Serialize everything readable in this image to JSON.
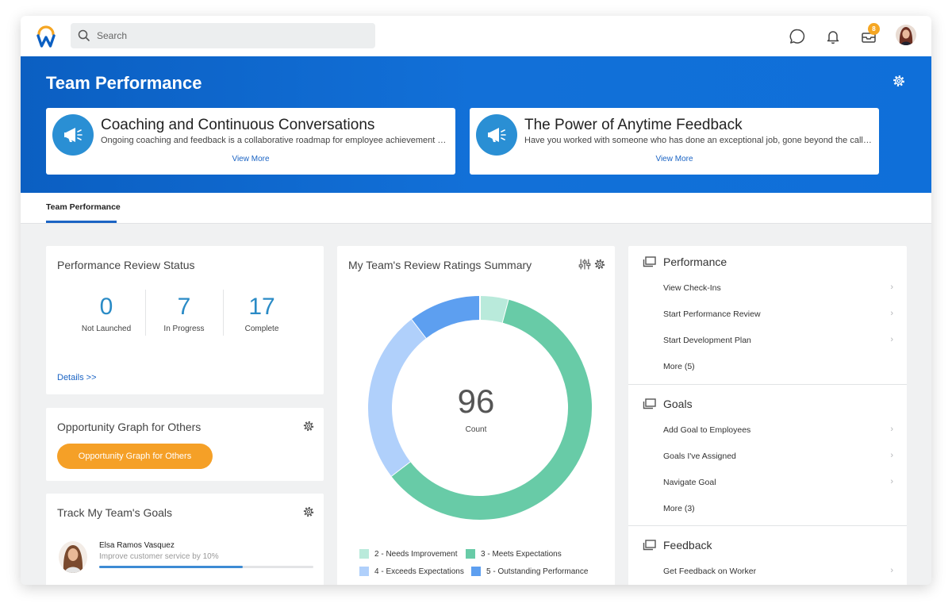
{
  "topbar": {
    "search_placeholder": "Search",
    "inbox_count": "8"
  },
  "hero": {
    "title": "Team Performance",
    "cards": [
      {
        "title": "Coaching and Continuous Conversations",
        "description": "Ongoing coaching and feedback is a collaborative roadmap for employee achievement and su...",
        "link": "View More"
      },
      {
        "title": "The Power of Anytime Feedback",
        "description": "Have you worked with someone who has done an exceptional job, gone beyond the call of dut...",
        "link": "View More"
      }
    ]
  },
  "tabs": [
    {
      "label": "Team Performance",
      "active": true
    }
  ],
  "review_status": {
    "title": "Performance Review Status",
    "stats": [
      {
        "value": "0",
        "label": "Not Launched"
      },
      {
        "value": "7",
        "label": "In Progress"
      },
      {
        "value": "17",
        "label": "Complete"
      }
    ],
    "details_link": "Details >>"
  },
  "opportunity": {
    "title": "Opportunity Graph for Others",
    "button": "Opportunity Graph for Others"
  },
  "team_goals": {
    "title": "Track My Team's Goals",
    "person": "Elsa Ramos Vasquez",
    "goal": "Improve customer service by 10%",
    "progress": 0.67
  },
  "ratings_summary": {
    "title": "My Team's Review Ratings Summary",
    "total": "96",
    "total_label": "Count",
    "legend": [
      {
        "label": "2 - Needs Improvement",
        "color": "#b9eadb"
      },
      {
        "label": "3 - Meets Expectations",
        "color": "#68cba7"
      },
      {
        "label": "4 - Exceeds Expectations",
        "color": "#b0d0fb"
      },
      {
        "label": "5 - Outstanding Performance",
        "color": "#5d9ff0"
      }
    ]
  },
  "chart_data": {
    "type": "pie",
    "title": "My Team's Review Ratings Summary",
    "categories": [
      "2 - Needs Improvement",
      "3 - Meets Expectations",
      "4 - Exceeds Expectations",
      "5 - Outstanding Performance"
    ],
    "values": [
      4,
      58,
      24,
      10
    ],
    "total": 96,
    "legend": "bottom"
  },
  "right_panel": {
    "sections": [
      {
        "title": "Performance",
        "items": [
          "View Check-Ins",
          "Start Performance Review",
          "Start Development Plan",
          "More (5)"
        ]
      },
      {
        "title": "Goals",
        "items": [
          "Add Goal to Employees",
          "Goals I've Assigned",
          "Navigate Goal",
          "More (3)"
        ]
      },
      {
        "title": "Feedback",
        "items": [
          "Get Feedback on Worker"
        ]
      }
    ]
  }
}
